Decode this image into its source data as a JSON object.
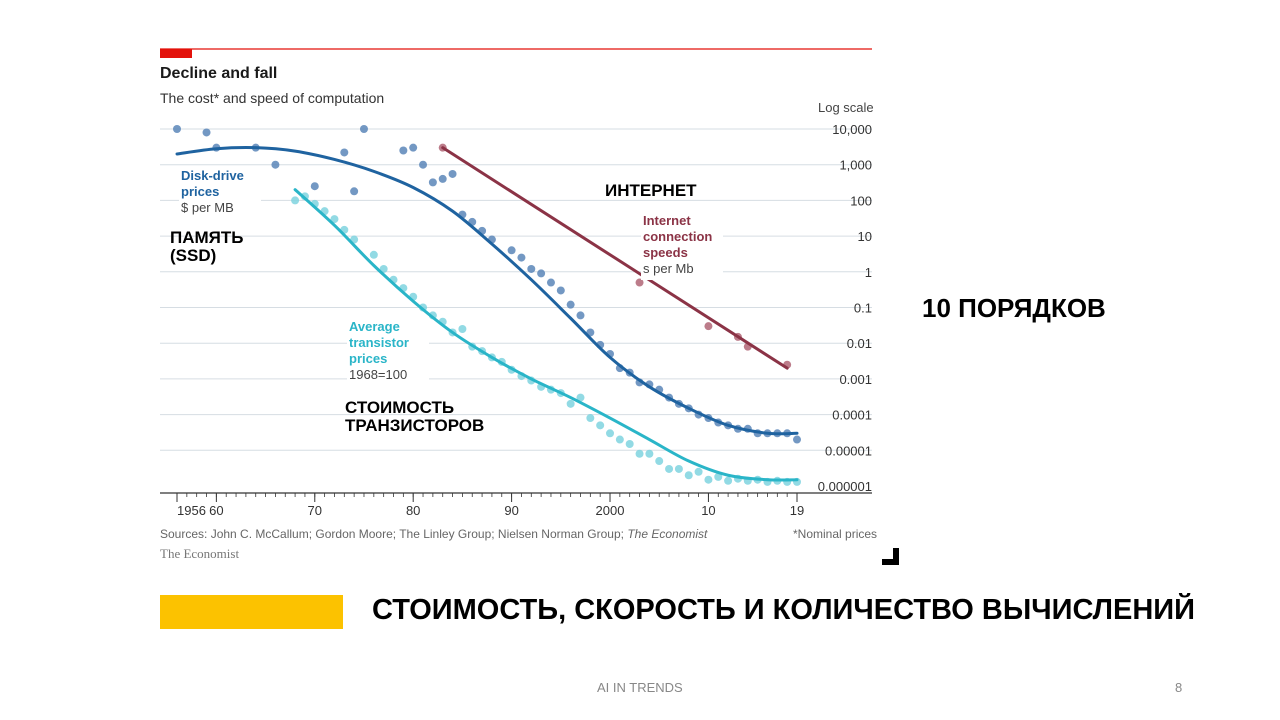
{
  "chart_data": {
    "type": "line",
    "title": "Decline and fall",
    "subtitle": "The cost* and speed of computation",
    "scale_note": "Log scale",
    "yscale": "log",
    "ylim": [
      1e-06,
      10000
    ],
    "xlim": [
      1956,
      2019
    ],
    "y_ticks": [
      "10,000",
      "1,000",
      "100",
      "10",
      "1",
      "0.1",
      "0.01",
      "0.001",
      "0.0001",
      "0.00001",
      "0.000001"
    ],
    "x_ticks": [
      {
        "x": 1956,
        "label": "1956"
      },
      {
        "x": 1960,
        "label": "60"
      },
      {
        "x": 1970,
        "label": "70"
      },
      {
        "x": 1980,
        "label": "80"
      },
      {
        "x": 1990,
        "label": "90"
      },
      {
        "x": 2000,
        "label": "2000"
      },
      {
        "x": 2010,
        "label": "10"
      },
      {
        "x": 2019,
        "label": "19"
      }
    ],
    "grid": true,
    "series": [
      {
        "name": "Disk-drive prices",
        "unit": "$ per MB",
        "color": "#1f63a0",
        "dot_color": "#5b86b8",
        "trend": [
          [
            1956,
            2000
          ],
          [
            1960,
            2800
          ],
          [
            1964,
            3000
          ],
          [
            1968,
            2400
          ],
          [
            1972,
            1400
          ],
          [
            1976,
            650
          ],
          [
            1980,
            230
          ],
          [
            1984,
            50
          ],
          [
            1988,
            6
          ],
          [
            1992,
            0.6
          ],
          [
            1996,
            0.05
          ],
          [
            2000,
            0.004
          ],
          [
            2004,
            0.0006
          ],
          [
            2008,
            0.00015
          ],
          [
            2012,
            5e-05
          ],
          [
            2016,
            3e-05
          ],
          [
            2019,
            3e-05
          ]
        ],
        "points": [
          [
            1956,
            10000
          ],
          [
            1959,
            8000
          ],
          [
            1960,
            3000
          ],
          [
            1964,
            3000
          ],
          [
            1966,
            1000
          ],
          [
            1970,
            250
          ],
          [
            1973,
            2200
          ],
          [
            1974,
            180
          ],
          [
            1975,
            10000
          ],
          [
            1979,
            2500
          ],
          [
            1980,
            3000
          ],
          [
            1981,
            1000
          ],
          [
            1982,
            320
          ],
          [
            1983,
            400
          ],
          [
            1984,
            550
          ],
          [
            1985,
            40
          ],
          [
            1986,
            25
          ],
          [
            1987,
            14
          ],
          [
            1988,
            8
          ],
          [
            1990,
            4
          ],
          [
            1991,
            2.5
          ],
          [
            1992,
            1.2
          ],
          [
            1993,
            0.9
          ],
          [
            1994,
            0.5
          ],
          [
            1995,
            0.3
          ],
          [
            1996,
            0.12
          ],
          [
            1997,
            0.06
          ],
          [
            1998,
            0.02
          ],
          [
            1999,
            0.009
          ],
          [
            2000,
            0.005
          ],
          [
            2001,
            0.002
          ],
          [
            2002,
            0.0015
          ],
          [
            2003,
            0.0008
          ],
          [
            2004,
            0.0007
          ],
          [
            2005,
            0.0005
          ],
          [
            2006,
            0.0003
          ],
          [
            2007,
            0.0002
          ],
          [
            2008,
            0.00015
          ],
          [
            2009,
            0.0001
          ],
          [
            2010,
            8e-05
          ],
          [
            2011,
            6e-05
          ],
          [
            2012,
            5e-05
          ],
          [
            2013,
            4e-05
          ],
          [
            2014,
            4e-05
          ],
          [
            2015,
            3e-05
          ],
          [
            2016,
            3e-05
          ],
          [
            2017,
            3e-05
          ],
          [
            2018,
            3e-05
          ],
          [
            2019,
            2e-05
          ]
        ]
      },
      {
        "name": "Average transistor prices",
        "unit": "1968=100",
        "color": "#2ab5c8",
        "dot_color": "#7fd3df",
        "trend": [
          [
            1968,
            200
          ],
          [
            1972,
            20
          ],
          [
            1976,
            1.5
          ],
          [
            1980,
            0.15
          ],
          [
            1984,
            0.02
          ],
          [
            1988,
            0.004
          ],
          [
            1992,
            0.001
          ],
          [
            1996,
            0.0003
          ],
          [
            2000,
            8e-05
          ],
          [
            2004,
            2e-05
          ],
          [
            2008,
            5e-06
          ],
          [
            2012,
            2e-06
          ],
          [
            2016,
            1.5e-06
          ],
          [
            2019,
            1.5e-06
          ]
        ],
        "points": [
          [
            1968,
            100
          ],
          [
            1969,
            130
          ],
          [
            1970,
            80
          ],
          [
            1971,
            50
          ],
          [
            1972,
            30
          ],
          [
            1973,
            15
          ],
          [
            1974,
            8
          ],
          [
            1976,
            3
          ],
          [
            1977,
            1.2
          ],
          [
            1978,
            0.6
          ],
          [
            1979,
            0.35
          ],
          [
            1980,
            0.2
          ],
          [
            1981,
            0.1
          ],
          [
            1982,
            0.06
          ],
          [
            1983,
            0.04
          ],
          [
            1984,
            0.02
          ],
          [
            1985,
            0.025
          ],
          [
            1986,
            0.008
          ],
          [
            1987,
            0.006
          ],
          [
            1988,
            0.004
          ],
          [
            1989,
            0.003
          ],
          [
            1990,
            0.0018
          ],
          [
            1991,
            0.0012
          ],
          [
            1992,
            0.0009
          ],
          [
            1993,
            0.0006
          ],
          [
            1994,
            0.0005
          ],
          [
            1995,
            0.0004
          ],
          [
            1996,
            0.0002
          ],
          [
            1997,
            0.0003
          ],
          [
            1998,
            8e-05
          ],
          [
            1999,
            5e-05
          ],
          [
            2000,
            3e-05
          ],
          [
            2001,
            2e-05
          ],
          [
            2002,
            1.5e-05
          ],
          [
            2003,
            8e-06
          ],
          [
            2004,
            8e-06
          ],
          [
            2005,
            5e-06
          ],
          [
            2006,
            3e-06
          ],
          [
            2007,
            3e-06
          ],
          [
            2008,
            2e-06
          ],
          [
            2009,
            2.5e-06
          ],
          [
            2010,
            1.5e-06
          ],
          [
            2011,
            1.8e-06
          ],
          [
            2012,
            1.4e-06
          ],
          [
            2013,
            1.6e-06
          ],
          [
            2014,
            1.4e-06
          ],
          [
            2015,
            1.5e-06
          ],
          [
            2016,
            1.3e-06
          ],
          [
            2017,
            1.4e-06
          ],
          [
            2018,
            1.3e-06
          ],
          [
            2019,
            1.3e-06
          ]
        ]
      },
      {
        "name": "Internet connection speeds",
        "unit": "s per Mb",
        "color": "#8b3346",
        "dot_color": "#b06575",
        "trend": [
          [
            1983,
            3000
          ],
          [
            2018,
            0.002
          ]
        ],
        "points": [
          [
            1983,
            3000
          ],
          [
            2003,
            0.5
          ],
          [
            2010,
            0.03
          ],
          [
            2013,
            0.015
          ],
          [
            2014,
            0.008
          ],
          [
            2018,
            0.0025
          ]
        ]
      }
    ],
    "sources": "Sources: John C. McCallum; Gordon Moore; The Linley Group; Nielsen Norman Group;",
    "sources_italic": "The Economist",
    "footnote": "*Nominal prices",
    "brand": "The Economist"
  },
  "labels": {
    "disk_name": "Disk-drive\nprices",
    "disk_unit": "$ per MB",
    "transistor_name": "Average\ntransistor\nprices",
    "transistor_unit": "1968=100",
    "internet_name": "Internet\nconnection\nspeeds",
    "internet_unit": "s per Mb"
  },
  "annotations": {
    "internet": "ИНТЕРНЕТ",
    "memory": "ПАМЯТЬ\n(SSD)",
    "transistors": "СТОИМОСТЬ\nТРАНЗИСТОРОВ",
    "orders": "10 ПОРЯДКОВ"
  },
  "slide": {
    "headline": "СТОИМОСТЬ, СКОРОСТЬ И КОЛИЧЕСТВО ВЫЧИСЛЕНИЙ",
    "footer": "AI IN TRENDS",
    "page": "8"
  },
  "colors": {
    "accent_red": "#e3120b",
    "yellow": "#fcc200",
    "grid": "#d6dde3",
    "axis": "#333333"
  }
}
